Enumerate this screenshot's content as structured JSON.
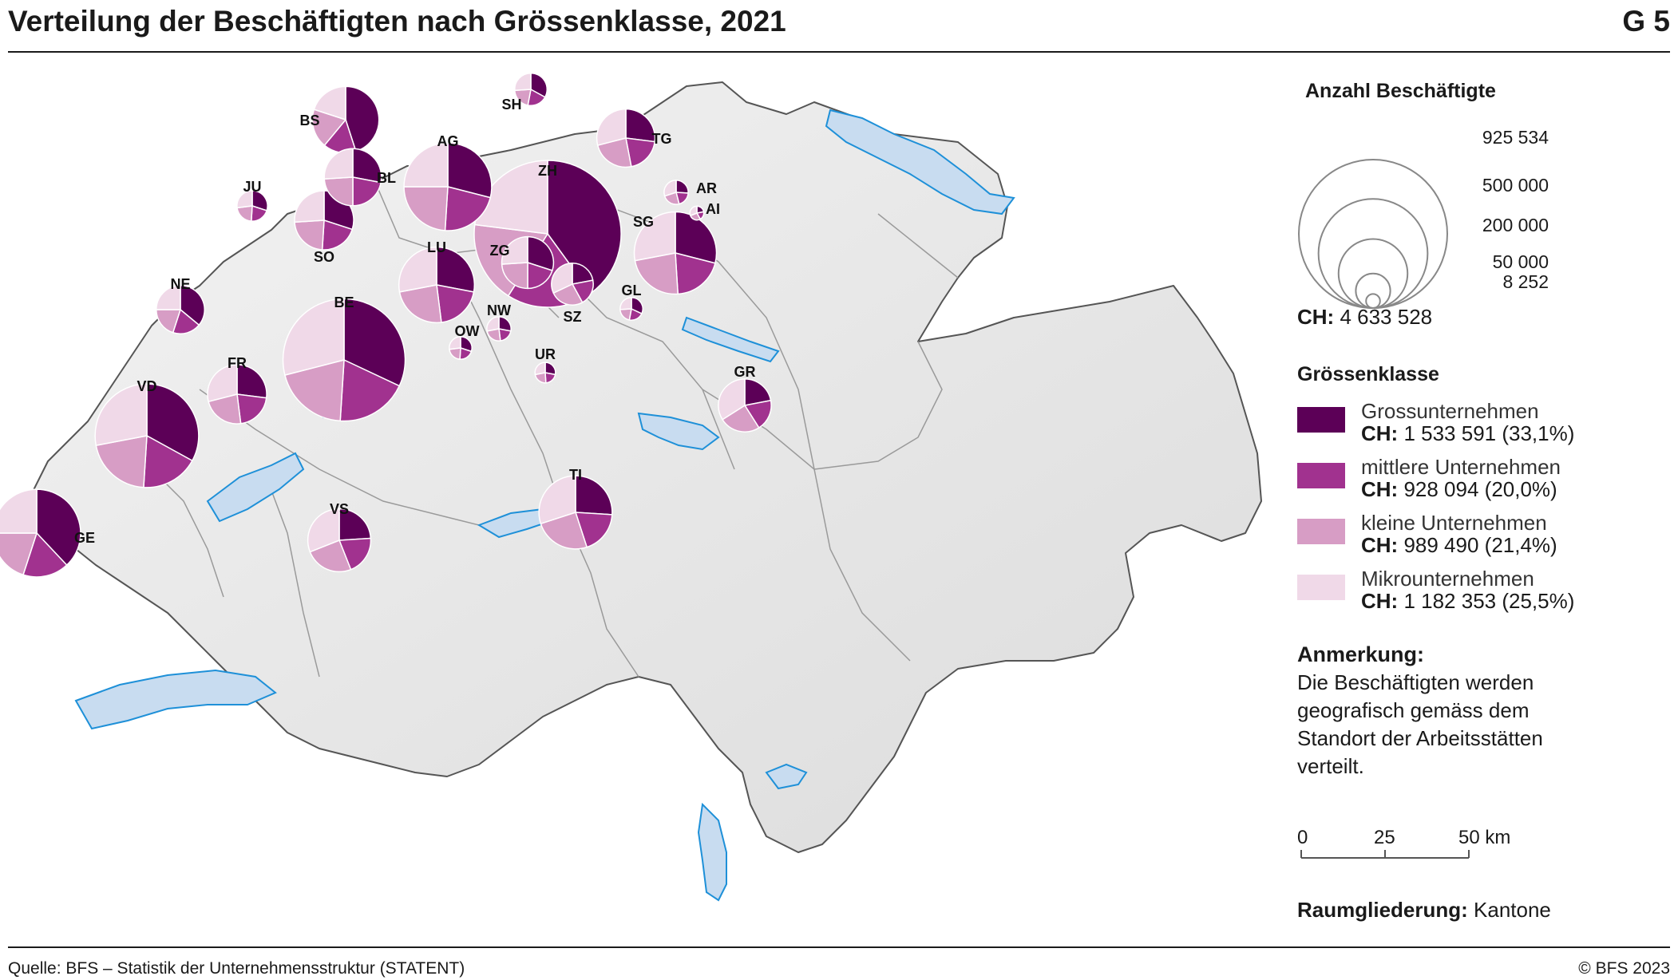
{
  "header": {
    "title": "Verteilung der Beschäftigten nach Grössenklasse, 2021",
    "figure_label": "G 5"
  },
  "legend": {
    "size_title": "Anzahl Beschäftigte",
    "size_values": [
      "925 534",
      "500 000",
      "200 000",
      "50 000",
      "8 252"
    ],
    "ch_prefix": "CH:",
    "ch_total_value": "4 633 528",
    "class_title": "Grössenklasse",
    "categories": [
      {
        "name": "Grossunternehmen",
        "total": "1 533 591 (33,1%)",
        "color": "#5c0057"
      },
      {
        "name": "mittlere Unternehmen",
        "total": "928 094 (20,0%)",
        "color": "#a1328f"
      },
      {
        "name": "kleine Unternehmen",
        "total": "989 490 (21,4%)",
        "color": "#d79dc5"
      },
      {
        "name": "Mikrounternehmen",
        "total": "1 182 353 (25,5%)",
        "color": "#f0d9e8"
      }
    ],
    "note_title": "Anmerkung:",
    "note_lines": [
      "Die Beschäftigten werden",
      "geografisch gemäss dem",
      "Standort der Arbeitsstätten",
      "verteilt."
    ],
    "scale_labels": [
      "0",
      "25",
      "50 km"
    ],
    "raum_label": "Raumgliederung:",
    "raum_value": "Kantone"
  },
  "chart_data": {
    "type": "pie",
    "title": "Verteilung der Beschäftigten nach Grössenklasse, 2021",
    "size_variable": "Anzahl Beschäftigte",
    "series_names": [
      "Grossunternehmen",
      "mittlere Unternehmen",
      "kleine Unternehmen",
      "Mikrounternehmen"
    ],
    "max_value": 925534,
    "cantons": [
      {
        "label": "ZH",
        "total": 925534,
        "shares": [
          0.4,
          0.19,
          0.18,
          0.23
        ]
      },
      {
        "label": "BE",
        "total": 640000,
        "shares": [
          0.32,
          0.19,
          0.2,
          0.29
        ]
      },
      {
        "label": "VD",
        "total": 460000,
        "shares": [
          0.33,
          0.18,
          0.21,
          0.28
        ]
      },
      {
        "label": "AG",
        "total": 330000,
        "shares": [
          0.29,
          0.22,
          0.24,
          0.25
        ]
      },
      {
        "label": "GE",
        "total": 330000,
        "shares": [
          0.38,
          0.17,
          0.2,
          0.25
        ]
      },
      {
        "label": "SG",
        "total": 290000,
        "shares": [
          0.29,
          0.2,
          0.23,
          0.28
        ]
      },
      {
        "label": "LU",
        "total": 245000,
        "shares": [
          0.28,
          0.2,
          0.24,
          0.28
        ]
      },
      {
        "label": "TI",
        "total": 230000,
        "shares": [
          0.26,
          0.19,
          0.25,
          0.3
        ]
      },
      {
        "label": "BS",
        "total": 190000,
        "shares": [
          0.45,
          0.16,
          0.19,
          0.2
        ]
      },
      {
        "label": "FR",
        "total": 150000,
        "shares": [
          0.27,
          0.21,
          0.23,
          0.29
        ]
      },
      {
        "label": "VS",
        "total": 170000,
        "shares": [
          0.24,
          0.2,
          0.25,
          0.31
        ]
      },
      {
        "label": "SO",
        "total": 150000,
        "shares": [
          0.3,
          0.21,
          0.23,
          0.26
        ]
      },
      {
        "label": "TG",
        "total": 145000,
        "shares": [
          0.27,
          0.2,
          0.24,
          0.29
        ]
      },
      {
        "label": "BL",
        "total": 140000,
        "shares": [
          0.28,
          0.22,
          0.24,
          0.26
        ]
      },
      {
        "label": "GR",
        "total": 120000,
        "shares": [
          0.22,
          0.19,
          0.25,
          0.34
        ]
      },
      {
        "label": "ZG",
        "total": 115000,
        "shares": [
          0.3,
          0.2,
          0.24,
          0.26
        ]
      },
      {
        "label": "NE",
        "total": 100000,
        "shares": [
          0.36,
          0.19,
          0.2,
          0.25
        ]
      },
      {
        "label": "SZ",
        "total": 75000,
        "shares": [
          0.22,
          0.2,
          0.26,
          0.32
        ]
      },
      {
        "label": "JU",
        "total": 40000,
        "shares": [
          0.3,
          0.21,
          0.22,
          0.27
        ]
      },
      {
        "label": "SH",
        "total": 45000,
        "shares": [
          0.33,
          0.2,
          0.21,
          0.26
        ]
      },
      {
        "label": "AR",
        "total": 25000,
        "shares": [
          0.26,
          0.2,
          0.24,
          0.3
        ]
      },
      {
        "label": "GL",
        "total": 22000,
        "shares": [
          0.32,
          0.21,
          0.21,
          0.26
        ]
      },
      {
        "label": "OW",
        "total": 22000,
        "shares": [
          0.3,
          0.21,
          0.22,
          0.27
        ]
      },
      {
        "label": "NW",
        "total": 25000,
        "shares": [
          0.28,
          0.2,
          0.24,
          0.28
        ]
      },
      {
        "label": "UR",
        "total": 18000,
        "shares": [
          0.28,
          0.21,
          0.23,
          0.28
        ]
      },
      {
        "label": "AI",
        "total": 8252,
        "shares": [
          0.22,
          0.2,
          0.27,
          0.31
        ]
      }
    ]
  },
  "footer": {
    "source": "Quelle: BFS – Statistik der Unternehmensstruktur (STATENT)",
    "copyright": "© BFS 2023"
  }
}
